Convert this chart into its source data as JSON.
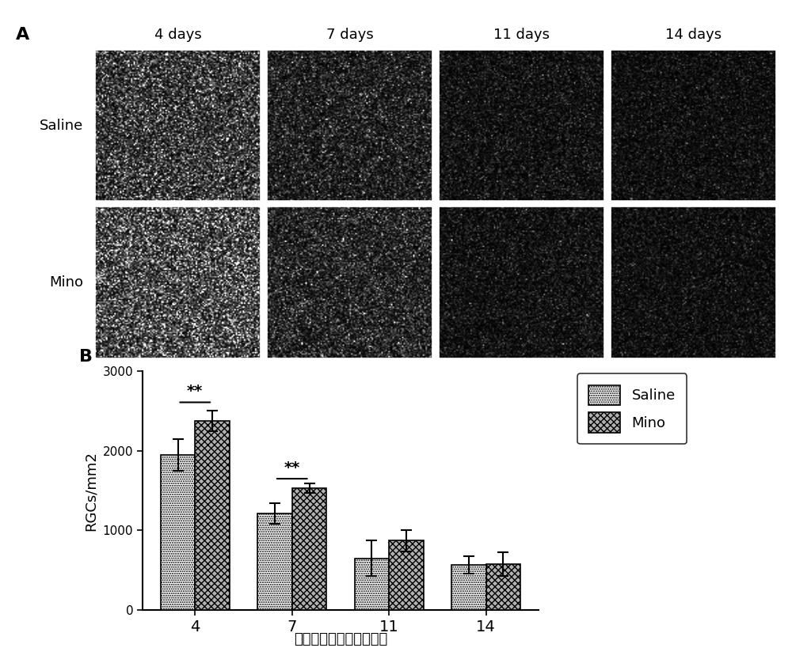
{
  "panel_A_label": "A",
  "panel_B_label": "B",
  "col_labels": [
    "4 days",
    "7 days",
    "11 days",
    "14 days"
  ],
  "row_labels": [
    "Saline",
    "Mino"
  ],
  "bar_groups": [
    4,
    7,
    11,
    14
  ],
  "saline_values": [
    1950,
    1210,
    650,
    570
  ],
  "mino_values": [
    2380,
    1530,
    870,
    580
  ],
  "saline_errors": [
    200,
    130,
    220,
    110
  ],
  "mino_errors": [
    130,
    60,
    130,
    150
  ],
  "ylabel": "RGCs/mm2",
  "xlabel": "视神经钒夹损伤后的天数",
  "ylim": [
    0,
    3000
  ],
  "yticks": [
    0,
    1000,
    2000,
    3000
  ],
  "significance_4": "**",
  "significance_7": "**",
  "legend_saline": "Saline",
  "legend_mino": "Mino",
  "bg_color": "#ffffff",
  "image_bg": "#111111",
  "img_brightness": [
    0.22,
    0.12,
    0.07,
    0.06
  ],
  "img_brightness_mino": [
    0.28,
    0.14,
    0.07,
    0.06
  ]
}
